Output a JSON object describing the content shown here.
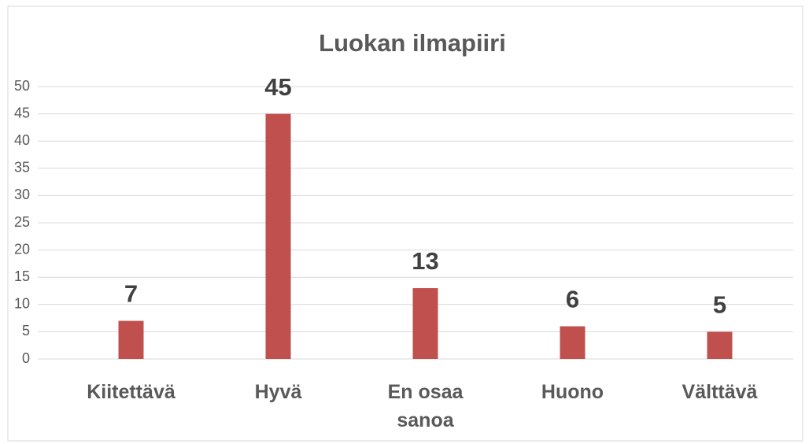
{
  "chart_data": {
    "type": "bar",
    "title": "Luokan ilmapiiri",
    "categories": [
      "Kiitettävä",
      "Hyvä",
      "En osaa sanoa",
      "Huono",
      "Välttävä"
    ],
    "values": [
      7,
      45,
      13,
      6,
      5
    ],
    "color": "#c0504d",
    "ylim": [
      0,
      50
    ],
    "yticks": [
      0,
      5,
      10,
      15,
      20,
      25,
      30,
      35,
      40,
      45,
      50
    ],
    "grid": true
  }
}
